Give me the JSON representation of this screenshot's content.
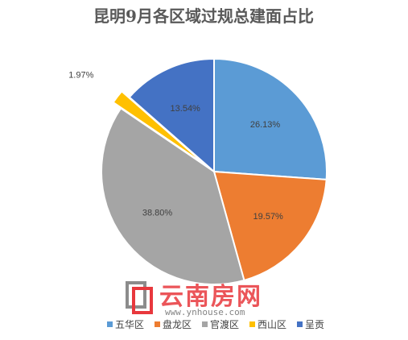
{
  "chart_data": {
    "type": "pie",
    "title": "昆明9月各区域过规总建面占比",
    "categories": [
      "五华区",
      "盘龙区",
      "官渡区",
      "西山区",
      "呈贡"
    ],
    "values": [
      26.13,
      19.57,
      38.8,
      1.97,
      13.54
    ],
    "data_labels": [
      "26.13%",
      "19.57%",
      "38.80%",
      "1.97%",
      "13.54%"
    ],
    "colors": [
      "#5B9BD5",
      "#ED7D31",
      "#A5A5A5",
      "#FFC000",
      "#4472C4"
    ],
    "exploded": [
      "西山区"
    ],
    "legend_position": "bottom"
  },
  "watermark": {
    "logo_text": "云南房网",
    "url": "www.ynhouse.com"
  }
}
